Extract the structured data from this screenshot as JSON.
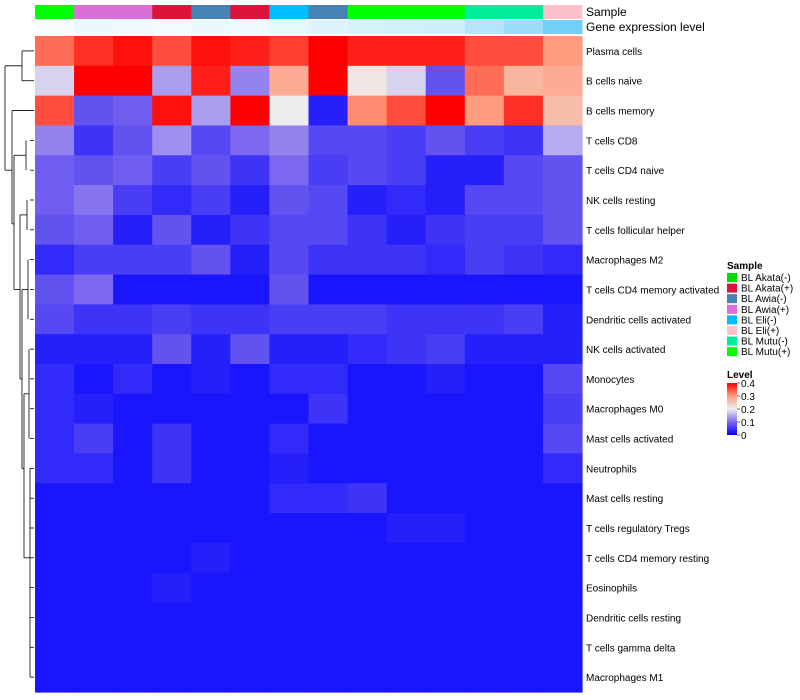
{
  "chart_data": {
    "type": "heatmap",
    "title": "",
    "annotation_labels": {
      "sample": "Sample",
      "expression": "Gene expression level"
    },
    "columns": [
      {
        "sample": "BL Mutu(+)",
        "expr": 0.05
      },
      {
        "sample": "BL Awia(+)",
        "expr": 0.12
      },
      {
        "sample": "BL Awia(+)",
        "expr": 0.1
      },
      {
        "sample": "BL Akata(+)",
        "expr": 0.08
      },
      {
        "sample": "BL Awia(-)",
        "expr": 0.12
      },
      {
        "sample": "BL Akata(+)",
        "expr": 0.1
      },
      {
        "sample": "BL Eli(-)",
        "expr": 0.15
      },
      {
        "sample": "BL Awia(-)",
        "expr": 0.2
      },
      {
        "sample": "BL Mutu(+)",
        "expr": 0.25
      },
      {
        "sample": "BL Mutu(+)",
        "expr": 0.28
      },
      {
        "sample": "BL Mutu(+)",
        "expr": 0.3
      },
      {
        "sample": "BL Mutu(-)",
        "expr": 0.45
      },
      {
        "sample": "BL Mutu(-)",
        "expr": 0.6
      },
      {
        "sample": "BL Eli(+)",
        "expr": 0.85
      }
    ],
    "rows": [
      "Plasma cells",
      "B cells naive",
      "B cells memory",
      "T cells CD8",
      "T cells CD4 naive",
      "NK cells resting",
      "T cells follicular helper",
      "Macrophages M2",
      "T cells CD4 memory activated",
      "Dendritic cells activated",
      "NK cells activated",
      "Monocytes",
      "Macrophages M0",
      "Mast cells activated",
      "Neutrophils",
      "Mast cells resting",
      "T cells regulatory  Tregs",
      "T cells CD4 memory resting",
      "Eosinophils",
      "Dendritic cells resting",
      "T cells gamma delta",
      "Macrophages M1"
    ],
    "values": [
      [
        0.33,
        0.37,
        0.39,
        0.35,
        0.39,
        0.38,
        0.36,
        0.4,
        0.38,
        0.38,
        0.38,
        0.35,
        0.35,
        0.3
      ],
      [
        0.18,
        0.41,
        0.41,
        0.14,
        0.38,
        0.12,
        0.28,
        0.41,
        0.21,
        0.18,
        0.08,
        0.33,
        0.27,
        0.28
      ],
      [
        0.35,
        0.08,
        0.09,
        0.39,
        0.14,
        0.41,
        0.2,
        0.03,
        0.31,
        0.35,
        0.41,
        0.3,
        0.37,
        0.26
      ],
      [
        0.12,
        0.05,
        0.08,
        0.13,
        0.07,
        0.1,
        0.12,
        0.07,
        0.07,
        0.06,
        0.08,
        0.06,
        0.05,
        0.15
      ],
      [
        0.09,
        0.08,
        0.09,
        0.06,
        0.08,
        0.05,
        0.1,
        0.06,
        0.07,
        0.06,
        0.03,
        0.03,
        0.07,
        0.08
      ],
      [
        0.09,
        0.11,
        0.06,
        0.04,
        0.06,
        0.03,
        0.08,
        0.07,
        0.03,
        0.04,
        0.03,
        0.07,
        0.07,
        0.08
      ],
      [
        0.08,
        0.09,
        0.03,
        0.08,
        0.03,
        0.05,
        0.07,
        0.07,
        0.05,
        0.03,
        0.05,
        0.06,
        0.06,
        0.08
      ],
      [
        0.04,
        0.06,
        0.06,
        0.06,
        0.08,
        0.03,
        0.07,
        0.05,
        0.05,
        0.05,
        0.04,
        0.06,
        0.05,
        0.04
      ],
      [
        0.08,
        0.1,
        0.02,
        0.02,
        0.02,
        0.02,
        0.08,
        0.02,
        0.02,
        0.02,
        0.02,
        0.02,
        0.02,
        0.02
      ],
      [
        0.07,
        0.05,
        0.05,
        0.06,
        0.05,
        0.05,
        0.06,
        0.06,
        0.06,
        0.05,
        0.05,
        0.05,
        0.06,
        0.03
      ],
      [
        0.03,
        0.03,
        0.03,
        0.08,
        0.03,
        0.08,
        0.03,
        0.03,
        0.04,
        0.05,
        0.06,
        0.03,
        0.03,
        0.03
      ],
      [
        0.04,
        0.02,
        0.04,
        0.02,
        0.03,
        0.02,
        0.04,
        0.04,
        0.02,
        0.02,
        0.03,
        0.02,
        0.02,
        0.07
      ],
      [
        0.04,
        0.03,
        0.02,
        0.02,
        0.02,
        0.02,
        0.02,
        0.05,
        0.02,
        0.02,
        0.02,
        0.02,
        0.02,
        0.06
      ],
      [
        0.04,
        0.06,
        0.02,
        0.05,
        0.02,
        0.02,
        0.04,
        0.02,
        0.02,
        0.02,
        0.02,
        0.02,
        0.02,
        0.07
      ],
      [
        0.04,
        0.04,
        0.02,
        0.05,
        0.02,
        0.02,
        0.03,
        0.02,
        0.02,
        0.02,
        0.02,
        0.02,
        0.02,
        0.04
      ],
      [
        0.02,
        0.02,
        0.02,
        0.02,
        0.02,
        0.02,
        0.04,
        0.04,
        0.05,
        0.02,
        0.02,
        0.02,
        0.02,
        0.02
      ],
      [
        0.02,
        0.02,
        0.02,
        0.02,
        0.02,
        0.02,
        0.02,
        0.02,
        0.02,
        0.03,
        0.03,
        0.02,
        0.02,
        0.02
      ],
      [
        0.02,
        0.02,
        0.02,
        0.02,
        0.03,
        0.02,
        0.02,
        0.02,
        0.02,
        0.02,
        0.02,
        0.02,
        0.02,
        0.02
      ],
      [
        0.02,
        0.02,
        0.02,
        0.03,
        0.02,
        0.02,
        0.02,
        0.02,
        0.02,
        0.02,
        0.02,
        0.02,
        0.02,
        0.02
      ],
      [
        0.02,
        0.02,
        0.02,
        0.02,
        0.02,
        0.02,
        0.02,
        0.02,
        0.02,
        0.02,
        0.02,
        0.02,
        0.02,
        0.02
      ],
      [
        0.02,
        0.02,
        0.02,
        0.02,
        0.02,
        0.02,
        0.02,
        0.02,
        0.02,
        0.02,
        0.02,
        0.02,
        0.02,
        0.02
      ],
      [
        0.02,
        0.02,
        0.02,
        0.02,
        0.02,
        0.02,
        0.02,
        0.02,
        0.02,
        0.02,
        0.02,
        0.02,
        0.02,
        0.02
      ]
    ],
    "color_scale": {
      "min": 0,
      "max": 0.4,
      "stops": [
        {
          "v": 0.0,
          "c": "#0000ff"
        },
        {
          "v": 0.1,
          "c": "#7b68ee"
        },
        {
          "v": 0.2,
          "c": "#eeeeee"
        },
        {
          "v": 0.3,
          "c": "#ff9c7d"
        },
        {
          "v": 0.4,
          "c": "#ff0000"
        }
      ]
    },
    "expression_scale": {
      "low": "#ffffff",
      "high": "#58c8f5"
    },
    "legend_sample": {
      "title": "Sample",
      "entries": [
        {
          "label": "BL Akata(-)",
          "color": "#00dd00"
        },
        {
          "label": "BL Akata(+)",
          "color": "#dc143c"
        },
        {
          "label": "BL Awia(-)",
          "color": "#4682b4"
        },
        {
          "label": "BL Awia(+)",
          "color": "#da70d6"
        },
        {
          "label": "BL Eli(-)",
          "color": "#00bfff"
        },
        {
          "label": "BL Eli(+)",
          "color": "#ffc0cb"
        },
        {
          "label": "BL Mutu(-)",
          "color": "#00ee99"
        },
        {
          "label": "BL Mutu(+)",
          "color": "#00ff00"
        }
      ]
    },
    "legend_level": {
      "title": "Level",
      "ticks": [
        "0.4",
        "0.3",
        "0.2",
        "0.1",
        "0"
      ]
    }
  }
}
